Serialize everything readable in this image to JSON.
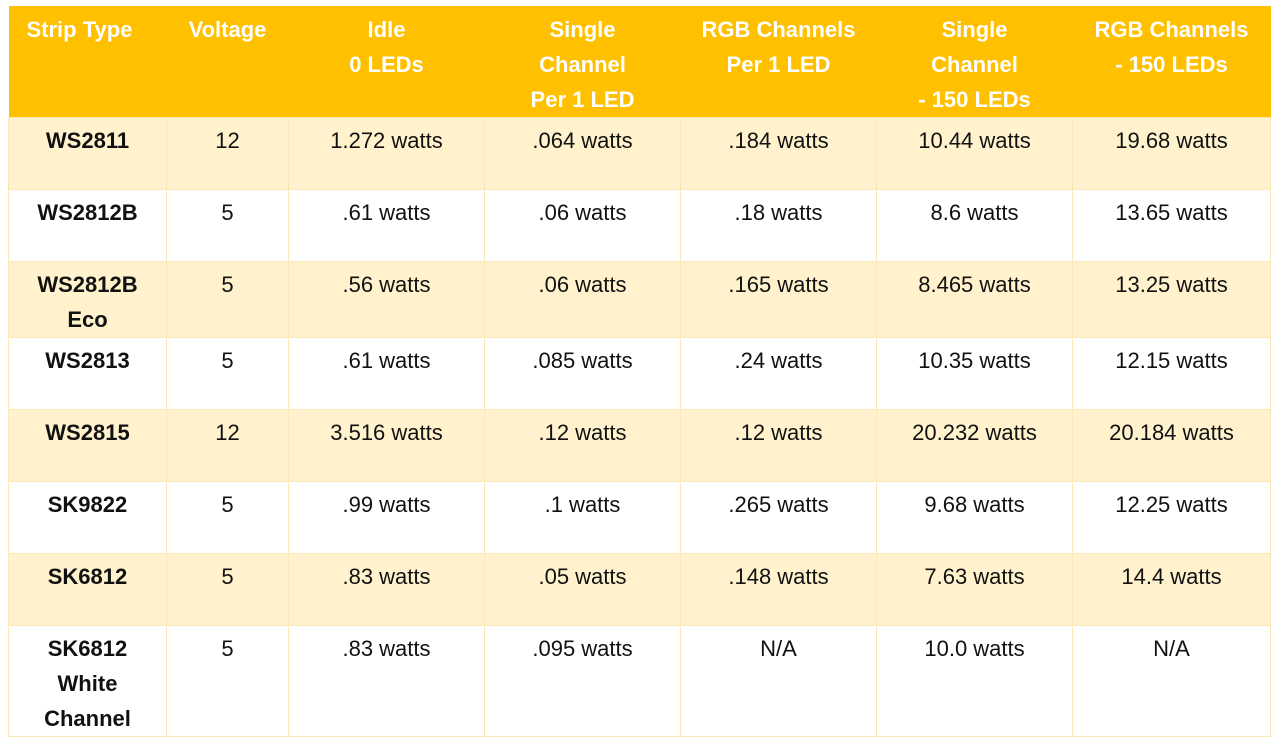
{
  "table": {
    "headers": [
      "Strip Type",
      "Voltage",
      "Idle\n0 LEDs",
      "Single\nChannel\nPer 1 LED",
      "RGB Channels\nPer 1 LED",
      "Single\nChannel\n- 150 LEDs",
      "RGB Channels\n- 150 LEDs"
    ],
    "rows": [
      [
        "WS2811",
        "12",
        "1.272 watts",
        ".064 watts",
        ".184 watts",
        "10.44 watts",
        "19.68 watts"
      ],
      [
        "WS2812B",
        "5",
        ".61 watts",
        ".06 watts",
        ".18 watts",
        "8.6 watts",
        "13.65 watts"
      ],
      [
        "WS2812B\nEco",
        "5",
        ".56 watts",
        ".06 watts",
        ".165 watts",
        "8.465 watts",
        "13.25 watts"
      ],
      [
        "WS2813",
        "5",
        ".61 watts",
        ".085 watts",
        ".24 watts",
        "10.35 watts",
        "12.15 watts"
      ],
      [
        "WS2815",
        "12",
        "3.516 watts",
        ".12 watts",
        ".12 watts",
        "20.232 watts",
        "20.184 watts"
      ],
      [
        "SK9822",
        "5",
        ".99 watts",
        ".1 watts",
        ".265 watts",
        "9.68 watts",
        "12.25 watts"
      ],
      [
        "SK6812",
        "5",
        ".83 watts",
        ".05 watts",
        ".148 watts",
        "7.63 watts",
        "14.4 watts"
      ],
      [
        "SK6812\nWhite\nChannel",
        "5",
        ".83 watts",
        ".095 watts",
        "N/A",
        "10.0 watts",
        "N/A"
      ]
    ]
  },
  "colors": {
    "header_bg": "#ffc000",
    "header_text": "#ffffff",
    "row_alt_bg": "#fff2cc",
    "row_bg": "#ffffff"
  }
}
